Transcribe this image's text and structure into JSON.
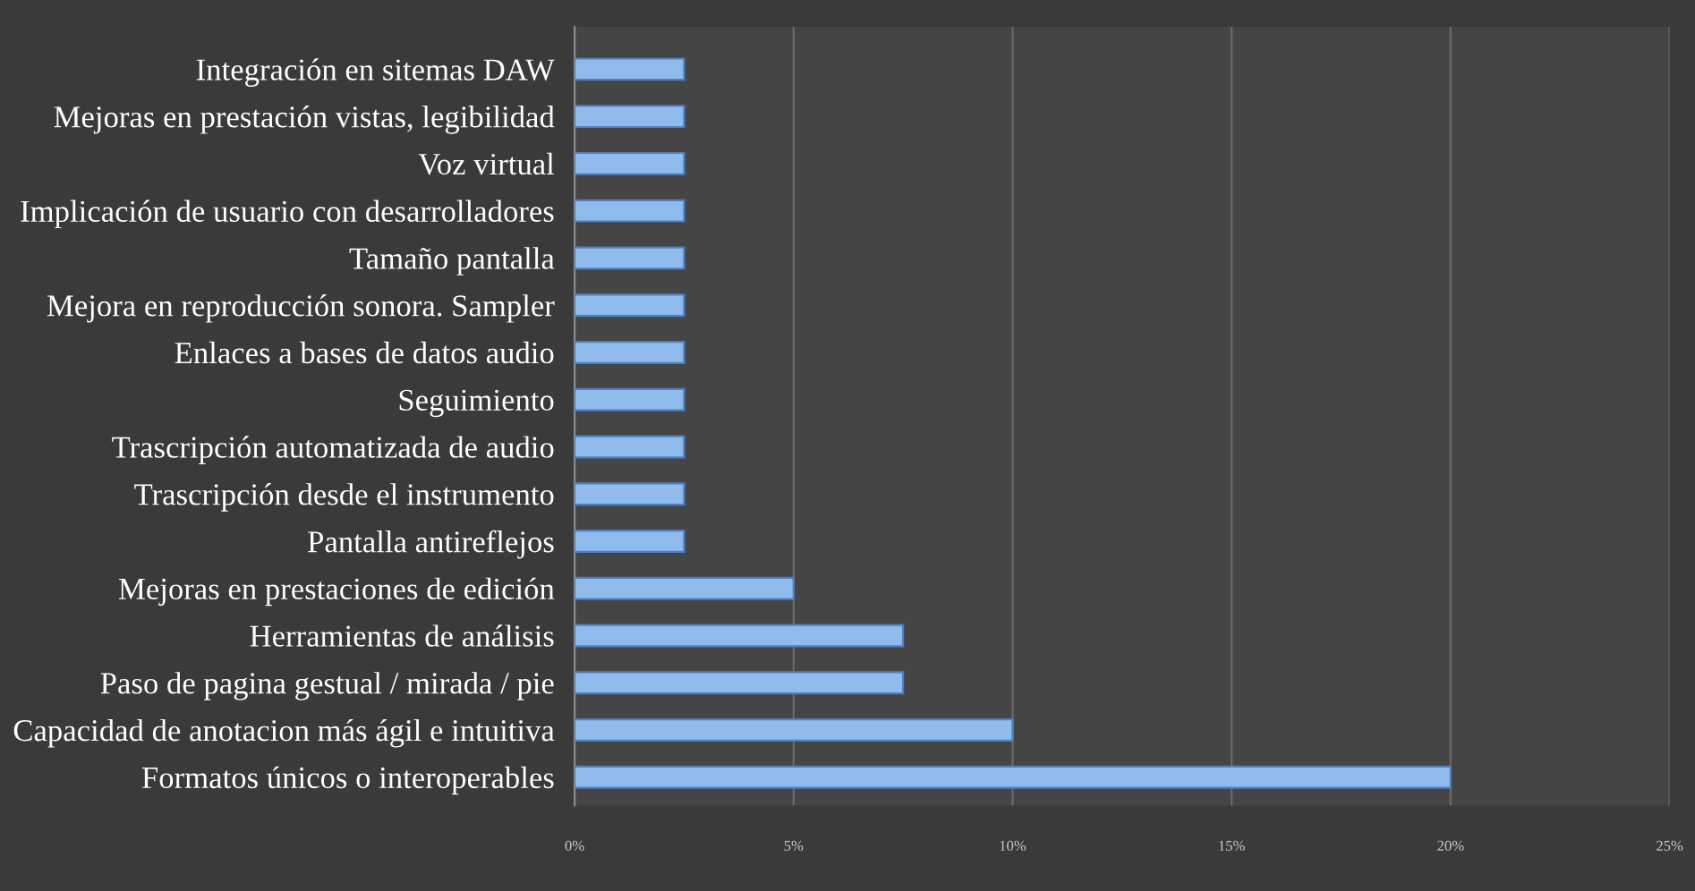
{
  "chart_data": {
    "type": "bar",
    "orientation": "horizontal",
    "categories": [
      "Integración en sitemas DAW",
      "Mejoras en prestación vistas, legibilidad",
      "Voz virtual",
      "Implicación de usuario con desarrolladores",
      "Tamaño pantalla",
      "Mejora en reproducción sonora. Sampler",
      "Enlaces a bases de datos audio",
      "Seguimiento",
      "Trascripción automatizada de audio",
      "Trascripción desde el instrumento",
      "Pantalla antireflejos",
      "Mejoras en prestaciones de edición",
      "Herramientas de análisis",
      "Paso de pagina gestual / mirada / pie",
      "Capacidad de anotacion más ágil e intuitiva",
      "Formatos únicos o interoperables"
    ],
    "values": [
      2.5,
      2.5,
      2.5,
      2.5,
      2.5,
      2.5,
      2.5,
      2.5,
      2.5,
      2.5,
      2.5,
      5,
      7.5,
      7.5,
      10,
      20
    ],
    "color": "#8fbcec",
    "xlim": [
      0,
      25
    ],
    "xticks": [
      {
        "value": 0,
        "label": "0%"
      },
      {
        "value": 5,
        "label": "5%"
      },
      {
        "value": 10,
        "label": "10%"
      },
      {
        "value": 15,
        "label": "15%"
      },
      {
        "value": 20,
        "label": "20%"
      },
      {
        "value": 25,
        "label": "25%"
      }
    ],
    "grid": "x",
    "legend": false
  }
}
